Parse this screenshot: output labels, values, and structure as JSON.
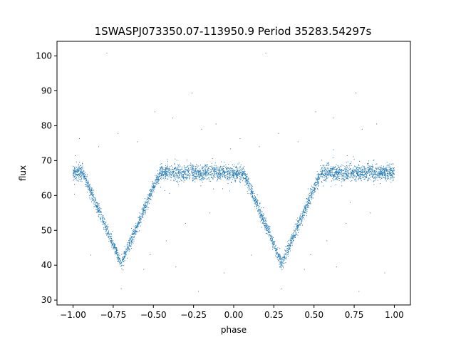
{
  "chart_data": {
    "type": "scatter",
    "title": "1SWASPJ073350.07-113950.9 Period 35283.54297s",
    "xlabel": "phase",
    "ylabel": "flux",
    "xlim": [
      -1.1,
      1.1
    ],
    "ylim": [
      28.6,
      104.2
    ],
    "xticks": [
      -1.0,
      -0.75,
      -0.5,
      -0.25,
      0.0,
      0.25,
      0.5,
      0.75,
      1.0
    ],
    "xtick_labels": [
      "−1.00",
      "−0.75",
      "−0.50",
      "−0.25",
      "0.00",
      "0.25",
      "0.50",
      "0.75",
      "1.00"
    ],
    "yticks": [
      30,
      40,
      50,
      60,
      70,
      80,
      90,
      100
    ],
    "ytick_labels": [
      "30",
      "40",
      "50",
      "60",
      "70",
      "80",
      "90",
      "100"
    ],
    "grid": false,
    "marker_color": "#1f77b4",
    "light_curve": {
      "baseline_flux": 66.5,
      "baseline_scatter": 1.1,
      "eclipses": [
        {
          "center_phase": -0.7,
          "min_flux": 40.5,
          "half_width": 0.24
        },
        {
          "center_phase": 0.3,
          "min_flux": 40.5,
          "half_width": 0.24
        }
      ],
      "phase_range": [
        -1.0,
        1.0
      ]
    },
    "outliers": [
      {
        "x": -0.79,
        "y": 100.8
      },
      {
        "x": 0.2,
        "y": 100.8
      },
      {
        "x": -0.26,
        "y": 89.4
      },
      {
        "x": 0.76,
        "y": 89.4
      },
      {
        "x": -0.49,
        "y": 84.0
      },
      {
        "x": 0.51,
        "y": 84.0
      },
      {
        "x": -0.38,
        "y": 82.2
      },
      {
        "x": 0.62,
        "y": 82.2
      },
      {
        "x": -0.11,
        "y": 80.5
      },
      {
        "x": 0.89,
        "y": 80.5
      },
      {
        "x": -0.2,
        "y": 79.0
      },
      {
        "x": 0.8,
        "y": 79.0
      },
      {
        "x": -0.96,
        "y": 76.3
      },
      {
        "x": 0.04,
        "y": 76.3
      },
      {
        "x": -0.6,
        "y": 75.4
      },
      {
        "x": 0.4,
        "y": 75.4
      },
      {
        "x": -0.84,
        "y": 74.0
      },
      {
        "x": 0.16,
        "y": 74.0
      },
      {
        "x": -0.72,
        "y": 77.8
      },
      {
        "x": 0.28,
        "y": 77.8
      },
      {
        "x": -0.89,
        "y": 42.9
      },
      {
        "x": 0.11,
        "y": 42.9
      },
      {
        "x": -0.56,
        "y": 38.8
      },
      {
        "x": 0.44,
        "y": 38.8
      },
      {
        "x": -0.7,
        "y": 33.2
      },
      {
        "x": 0.3,
        "y": 33.2
      },
      {
        "x": -0.22,
        "y": 32.5
      },
      {
        "x": 0.78,
        "y": 32.5
      },
      {
        "x": -0.42,
        "y": 47.0
      },
      {
        "x": 0.58,
        "y": 47.0
      },
      {
        "x": -0.3,
        "y": 52.0
      },
      {
        "x": 0.7,
        "y": 52.0
      },
      {
        "x": -0.15,
        "y": 55.0
      },
      {
        "x": 0.85,
        "y": 55.0
      },
      {
        "x": -0.36,
        "y": 39.5
      },
      {
        "x": 0.64,
        "y": 39.5
      },
      {
        "x": -0.06,
        "y": 37.8
      },
      {
        "x": 0.94,
        "y": 37.8
      },
      {
        "x": -0.52,
        "y": 43.0
      },
      {
        "x": 0.48,
        "y": 43.0
      }
    ]
  }
}
